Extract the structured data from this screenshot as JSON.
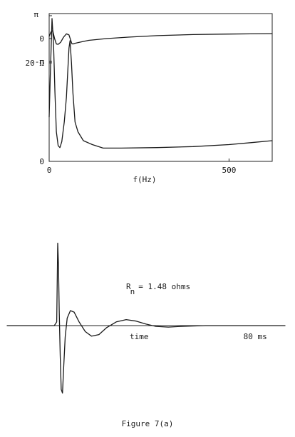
{
  "chart_data": [
    {
      "type": "line",
      "title": "",
      "xlabel": "f(Hz)",
      "xlim": [
        0,
        620
      ],
      "x_ticks": [
        {
          "value": 0,
          "label": "0"
        },
        {
          "value": 500,
          "label": "500"
        }
      ],
      "y_tick_labels": [
        "π",
        "0",
        "-π",
        "20 Ω",
        "0"
      ],
      "grid": false,
      "series": [
        {
          "role": "phase",
          "ylim": [
            -3.1416,
            3.1416
          ],
          "x": [
            0,
            5,
            10,
            15,
            20,
            25,
            32,
            40,
            48,
            55,
            60,
            63,
            66,
            72,
            85,
            110,
            160,
            220,
            300,
            400,
            500,
            560,
            620
          ],
          "y": [
            0.3,
            0.9,
            1.1,
            0.0,
            -0.75,
            -0.8,
            -0.5,
            0.2,
            0.65,
            0.5,
            -0.25,
            -0.7,
            -0.75,
            -0.65,
            -0.5,
            -0.25,
            0.0,
            0.2,
            0.4,
            0.55,
            0.62,
            0.65,
            0.68
          ]
        },
        {
          "role": "magnitude",
          "ylim": [
            0,
            30
          ],
          "x": [
            0,
            3,
            8,
            12,
            16,
            20,
            25,
            30,
            35,
            42,
            48,
            55,
            58,
            62,
            66,
            72,
            80,
            95,
            120,
            150,
            200,
            300,
            400,
            500,
            560,
            620
          ],
          "y": [
            9,
            17,
            29,
            24,
            14,
            6,
            3.2,
            2.8,
            4,
            8,
            13,
            23,
            24.5,
            20,
            14,
            8,
            6,
            4.2,
            3.4,
            2.7,
            2.7,
            2.8,
            3.0,
            3.4,
            3.8,
            4.2
          ]
        }
      ]
    },
    {
      "type": "line",
      "title": "",
      "xlabel": "time",
      "x_ticks": [
        {
          "value": 80,
          "label": "80 ms"
        }
      ],
      "xlim": [
        -20,
        92
      ],
      "ylim": [
        -1,
        1.15
      ],
      "annotation": {
        "base": "R",
        "subscript": "n",
        "text": "= 1.48 ohms"
      },
      "series": [
        {
          "role": "pulse",
          "x": [
            -20,
            -1,
            0,
            0.4,
            0.7,
            1.0,
            1.4,
            1.8,
            2.3,
            2.8,
            3.4,
            4.2,
            5.5,
            7,
            9,
            11.5,
            14,
            17,
            20,
            24,
            28,
            32,
            36,
            40,
            45,
            50,
            60,
            70,
            80,
            92
          ],
          "y": [
            0,
            0,
            0.05,
            1.1,
            0.8,
            0.2,
            -0.4,
            -0.85,
            -0.9,
            -0.55,
            -0.15,
            0.1,
            0.2,
            0.18,
            0.05,
            -0.08,
            -0.14,
            -0.12,
            -0.03,
            0.05,
            0.08,
            0.06,
            0.02,
            -0.01,
            -0.02,
            -0.01,
            0.0,
            0.0,
            0.0,
            0.0
          ]
        }
      ]
    }
  ],
  "caption": "Figure 7(a)"
}
